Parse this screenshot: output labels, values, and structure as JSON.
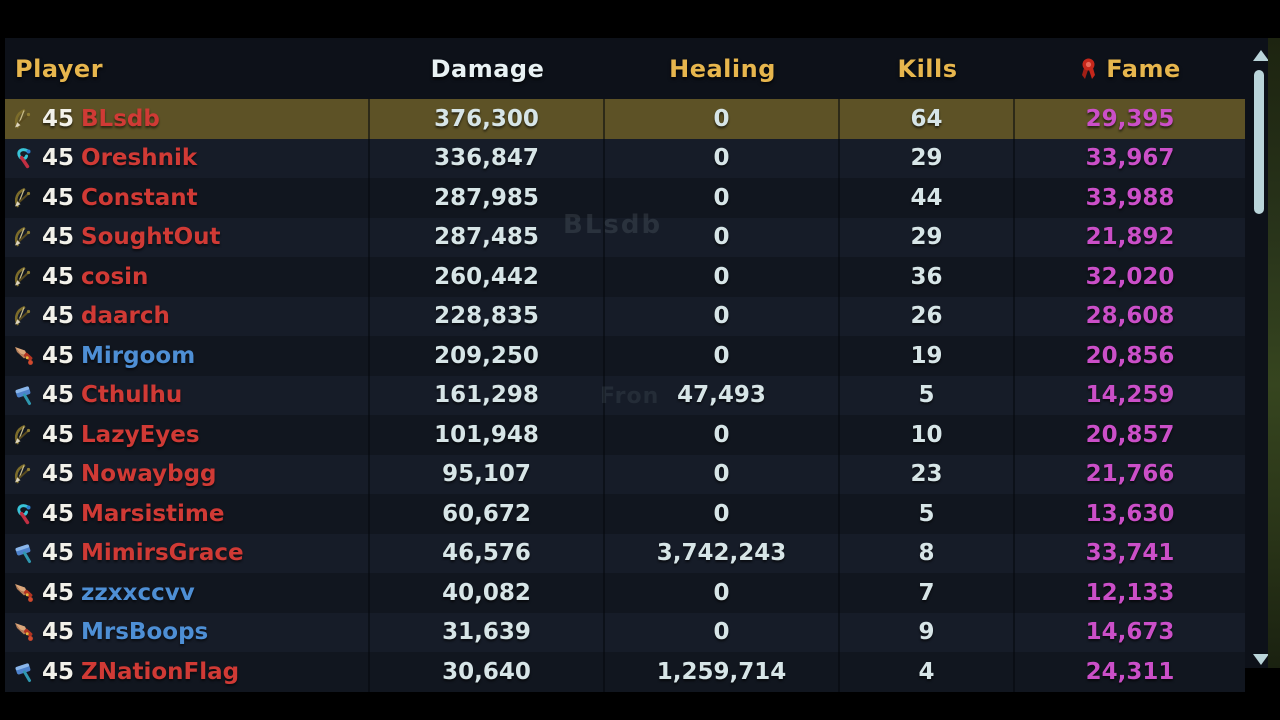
{
  "header": {
    "columns": [
      {
        "id": "player",
        "label": "Player",
        "sorted": false
      },
      {
        "id": "damage",
        "label": "Damage",
        "sorted": true
      },
      {
        "id": "healing",
        "label": "Healing",
        "sorted": false
      },
      {
        "id": "kills",
        "label": "Kills",
        "sorted": false
      },
      {
        "id": "fame",
        "label": "Fame",
        "sorted": false,
        "icon": "medal-icon",
        "icon_color": "#c5271b"
      }
    ]
  },
  "table": {
    "rows": [
      {
        "icon": "bow",
        "level": "45",
        "name": "BLsdb",
        "name_color": "red",
        "damage": "376,300",
        "healing": "0",
        "kills": "64",
        "fame": "29,395",
        "highlighted": true
      },
      {
        "icon": "claws",
        "level": "45",
        "name": "Oreshnik",
        "name_color": "red",
        "damage": "336,847",
        "healing": "0",
        "kills": "29",
        "fame": "33,967",
        "highlighted": false
      },
      {
        "icon": "bow",
        "level": "45",
        "name": "Constant",
        "name_color": "red",
        "damage": "287,985",
        "healing": "0",
        "kills": "44",
        "fame": "33,988",
        "highlighted": false
      },
      {
        "icon": "bow",
        "level": "45",
        "name": "SoughtOut",
        "name_color": "red",
        "damage": "287,485",
        "healing": "0",
        "kills": "29",
        "fame": "21,892",
        "highlighted": false
      },
      {
        "icon": "bow",
        "level": "45",
        "name": "cosin",
        "name_color": "red",
        "damage": "260,442",
        "healing": "0",
        "kills": "36",
        "fame": "32,020",
        "highlighted": false
      },
      {
        "icon": "bow",
        "level": "45",
        "name": "daarch",
        "name_color": "red",
        "damage": "228,835",
        "healing": "0",
        "kills": "26",
        "fame": "28,608",
        "highlighted": false
      },
      {
        "icon": "dagger",
        "level": "45",
        "name": "Mirgoom",
        "name_color": "blue",
        "damage": "209,250",
        "healing": "0",
        "kills": "19",
        "fame": "20,856",
        "highlighted": false
      },
      {
        "icon": "hammer",
        "level": "45",
        "name": "Cthulhu",
        "name_color": "red",
        "damage": "161,298",
        "healing": "47,493",
        "kills": "5",
        "fame": "14,259",
        "highlighted": false
      },
      {
        "icon": "bow",
        "level": "45",
        "name": "LazyEyes",
        "name_color": "red",
        "damage": "101,948",
        "healing": "0",
        "kills": "10",
        "fame": "20,857",
        "highlighted": false
      },
      {
        "icon": "bow",
        "level": "45",
        "name": "Nowaybgg",
        "name_color": "red",
        "damage": "95,107",
        "healing": "0",
        "kills": "23",
        "fame": "21,766",
        "highlighted": false
      },
      {
        "icon": "claws",
        "level": "45",
        "name": "Marsistime",
        "name_color": "red",
        "damage": "60,672",
        "healing": "0",
        "kills": "5",
        "fame": "13,630",
        "highlighted": false
      },
      {
        "icon": "hammer",
        "level": "45",
        "name": "MimirsGrace",
        "name_color": "red",
        "damage": "46,576",
        "healing": "3,742,243",
        "kills": "8",
        "fame": "33,741",
        "highlighted": false
      },
      {
        "icon": "dagger",
        "level": "45",
        "name": "zzxxccvv",
        "name_color": "blue",
        "damage": "40,082",
        "healing": "0",
        "kills": "7",
        "fame": "12,133",
        "highlighted": false
      },
      {
        "icon": "dagger",
        "level": "45",
        "name": "MrsBoops",
        "name_color": "blue",
        "damage": "31,639",
        "healing": "0",
        "kills": "9",
        "fame": "14,673",
        "highlighted": false
      },
      {
        "icon": "hammer",
        "level": "45",
        "name": "ZNationFlag",
        "name_color": "red",
        "damage": "30,640",
        "healing": "1,259,714",
        "kills": "4",
        "fame": "24,311",
        "highlighted": false
      }
    ]
  },
  "scrollbar": {
    "up_arrow": "▲",
    "down_arrow": "▼",
    "thumb_position": "top"
  },
  "background_artifacts": [
    {
      "text": "BLsdb"
    },
    {
      "text": "Fron"
    }
  ],
  "colors": {
    "header_gold": "#e7b64d",
    "sorted_header_white": "#e9f2f4",
    "value_text": "#d7e5e7",
    "name_red": "#d03a35",
    "name_blue": "#4e8fd5",
    "fame_magenta": "#cb4fc8",
    "highlight_row": "#5d5226",
    "row_light": "#161c28",
    "row_dark": "#11161f",
    "panel_bg": "#0d1119",
    "scrollbar": "#bad5da",
    "fame_medal_red": "#c5271b"
  }
}
